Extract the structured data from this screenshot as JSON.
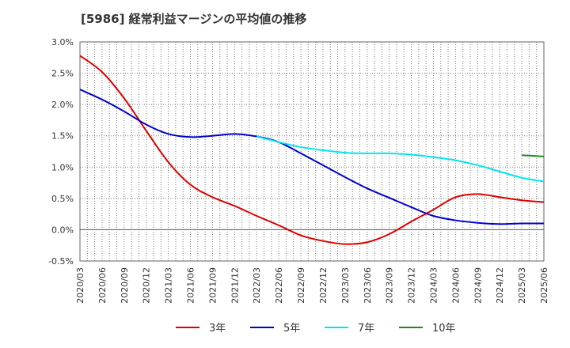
{
  "chart_data": {
    "type": "line",
    "title": "[5986]  経常利益マージンの平均値の推移",
    "xlabel": "",
    "ylabel": "",
    "x": [
      "2020/03",
      "2020/06",
      "2020/09",
      "2020/12",
      "2021/03",
      "2021/06",
      "2021/09",
      "2021/12",
      "2022/03",
      "2022/06",
      "2022/09",
      "2022/12",
      "2023/03",
      "2023/06",
      "2023/09",
      "2023/12",
      "2024/03",
      "2024/06",
      "2024/09",
      "2024/12",
      "2025/03",
      "2025/06"
    ],
    "ylim": [
      -0.5,
      3.0
    ],
    "yticks": [
      "-0.5%",
      "0.0%",
      "0.5%",
      "1.0%",
      "1.5%",
      "2.0%",
      "2.5%",
      "3.0%"
    ],
    "grid": true,
    "legend_position": "bottom",
    "series": [
      {
        "name": "3年",
        "color": "#dd0000",
        "values": [
          2.78,
          2.52,
          2.1,
          1.58,
          1.08,
          0.72,
          0.52,
          0.38,
          0.22,
          0.07,
          -0.09,
          -0.18,
          -0.23,
          -0.2,
          -0.07,
          0.13,
          0.32,
          0.52,
          0.57,
          0.52,
          0.47,
          0.44
        ]
      },
      {
        "name": "5年",
        "color": "#0000cc",
        "values": [
          2.24,
          2.08,
          1.89,
          1.68,
          1.53,
          1.48,
          1.5,
          1.53,
          1.49,
          1.4,
          1.22,
          1.03,
          0.84,
          0.66,
          0.51,
          0.36,
          0.22,
          0.15,
          0.11,
          0.09,
          0.1,
          0.1
        ]
      },
      {
        "name": "7年",
        "color": "#00e5ee",
        "values": [
          null,
          null,
          null,
          null,
          null,
          null,
          null,
          null,
          1.49,
          1.4,
          1.32,
          1.27,
          1.23,
          1.22,
          1.22,
          1.2,
          1.16,
          1.11,
          1.03,
          0.93,
          0.83,
          0.77
        ]
      },
      {
        "name": "10年",
        "color": "#228822",
        "values": [
          null,
          null,
          null,
          null,
          null,
          null,
          null,
          null,
          null,
          null,
          null,
          null,
          null,
          null,
          null,
          null,
          null,
          null,
          null,
          null,
          1.19,
          1.17
        ]
      }
    ]
  }
}
